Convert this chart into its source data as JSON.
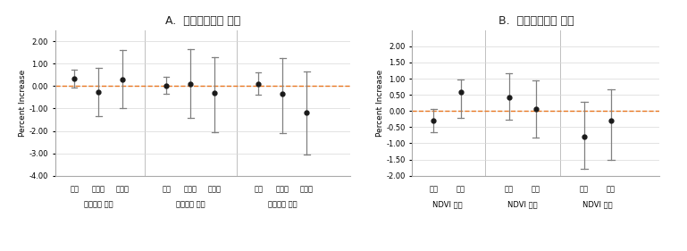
{
  "title_A": "A.  심혈관계질환 사망",
  "title_B": "B.  심혈관계질환 상병",
  "chart_A": {
    "groups": [
      "의료지수 낮음",
      "의료지수 보통",
      "의료지수 높음"
    ],
    "categories": [
      "무직",
      "노동직",
      "사무직"
    ],
    "centers": [
      0.35,
      -0.25,
      0.3,
      0.0,
      0.1,
      -0.3,
      0.1,
      -0.35,
      -1.2
    ],
    "uppers": [
      0.75,
      0.8,
      1.6,
      0.4,
      1.65,
      1.3,
      0.6,
      1.25,
      0.65
    ],
    "lowers": [
      -0.05,
      -1.35,
      -1.0,
      -0.35,
      -1.4,
      -2.05,
      -0.4,
      -2.1,
      -3.05
    ],
    "ylim": [
      -4.0,
      2.5
    ],
    "yticks": [
      2.0,
      1.0,
      0.0,
      -1.0,
      -2.0,
      -3.0,
      -4.0
    ],
    "ylabel": "Percent Increase"
  },
  "chart_B": {
    "groups": [
      "NDVI 낮음",
      "NDVI 보통",
      "NDVI 높음"
    ],
    "categories": [
      "남성",
      "여성"
    ],
    "centers": [
      -0.3,
      0.58,
      0.42,
      0.05,
      -0.8,
      -0.3
    ],
    "uppers": [
      0.05,
      0.98,
      1.18,
      0.95,
      0.28,
      0.68
    ],
    "lowers": [
      -0.65,
      -0.22,
      -0.28,
      -0.82,
      -1.8,
      -1.5
    ],
    "ylim": [
      -2.0,
      2.5
    ],
    "yticks": [
      2.0,
      1.5,
      1.0,
      0.5,
      0.0,
      -0.5,
      -1.0,
      -1.5,
      -2.0
    ],
    "ylabel": "Percent Increase"
  },
  "dot_color": "#1a1a1a",
  "line_color": "#808080",
  "ref_line_color": "#e87722",
  "ref_line_style": "--",
  "figsize": [
    7.69,
    2.81
  ],
  "dpi": 100
}
